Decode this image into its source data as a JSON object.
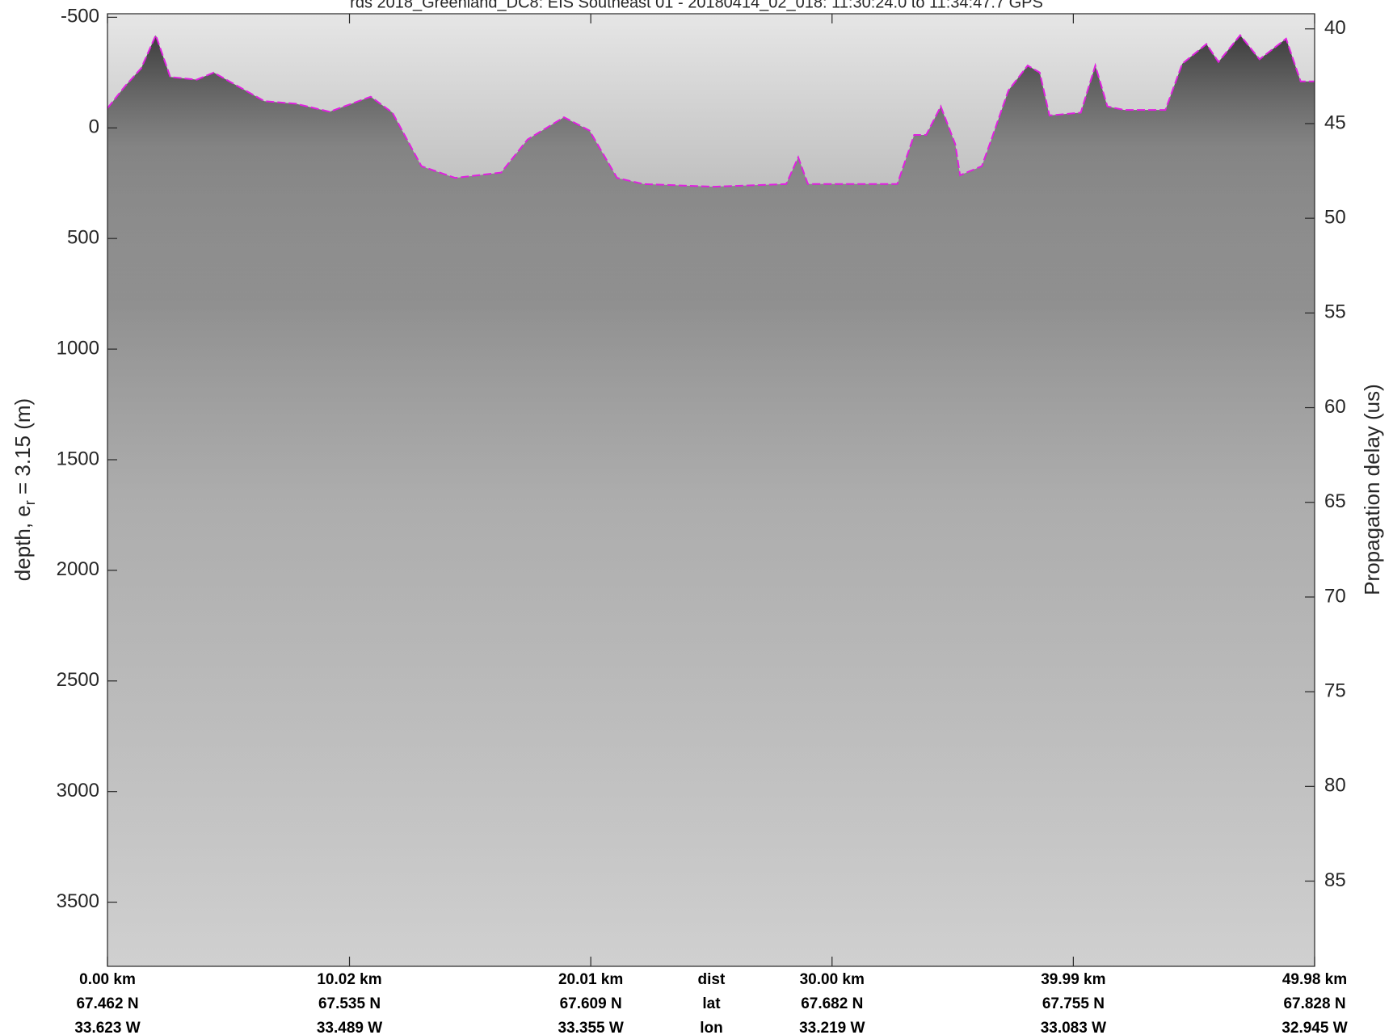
{
  "chart_data": {
    "type": "line",
    "title": "rds 2018_Greenland_DC8: EIS Southeast 01 - 20180414_02_018: 11:30:24.0 to 11:34:47.7 GPS",
    "ylabel": [
      "depth, e",
      "r",
      " = 3.15 (m)"
    ],
    "y2label": "Propagation delay (us)",
    "xlim": [
      0,
      49.98
    ],
    "ylim": [
      -516,
      3790
    ],
    "yticks": [
      -500,
      0,
      500,
      1000,
      1500,
      2000,
      2500,
      3000,
      3500
    ],
    "y2lim": [
      39.2,
      89.5
    ],
    "y2ticks": [
      40,
      45,
      50,
      55,
      60,
      65,
      70,
      75,
      80,
      85
    ],
    "xticks": [
      {
        "value": 0,
        "label": "0.00 km"
      },
      {
        "value": 10.02,
        "label": "10.02 km"
      },
      {
        "value": 20.01,
        "label": "20.01 km"
      },
      {
        "value": 30.0,
        "label": "30.00 km"
      },
      {
        "value": 39.99,
        "label": "39.99 km"
      },
      {
        "value": 49.98,
        "label": "49.98 km"
      }
    ],
    "lat_labels": [
      "67.462 N",
      "67.535 N",
      "67.609 N",
      "67.682 N",
      "67.755 N",
      "67.828 N"
    ],
    "lon_labels": [
      "33.623 W",
      "33.489 W",
      "33.355 W",
      "33.219 W",
      "33.083 W",
      "32.945 W"
    ],
    "row_names": [
      "dist",
      "lat",
      "lon"
    ],
    "series": [
      {
        "color": "#e020e0",
        "x": [
          0,
          0.74,
          1.4,
          2.0,
          2.6,
          3.7,
          4.4,
          6.5,
          7.8,
          9.2,
          10.9,
          11.8,
          13.0,
          14.4,
          16.3,
          17.4,
          18.9,
          19.96,
          21.1,
          22.2,
          25.1,
          28.1,
          28.6,
          29.0,
          32.7,
          33.4,
          33.9,
          34.5,
          35.1,
          35.3,
          36.2,
          36.6,
          37.3,
          38.1,
          38.6,
          39.0,
          40.3,
          40.9,
          41.4,
          42.1,
          43.8,
          44.5,
          45.5,
          46.0,
          46.9,
          47.7,
          48.8,
          49.4,
          49.98
        ],
        "values": [
          -89,
          -190,
          -270,
          -419,
          -230,
          -218,
          -250,
          -121,
          -109,
          -73,
          -141,
          -69,
          173,
          226,
          202,
          52,
          -48,
          12,
          226,
          254,
          266,
          254,
          133,
          254,
          254,
          32,
          32,
          -97,
          73,
          214,
          173,
          52,
          -169,
          -282,
          -250,
          -56,
          -69,
          -282,
          -97,
          -81,
          -81,
          -290,
          -379,
          -298,
          -419,
          -310,
          -403,
          -210,
          -210
        ]
      }
    ]
  }
}
